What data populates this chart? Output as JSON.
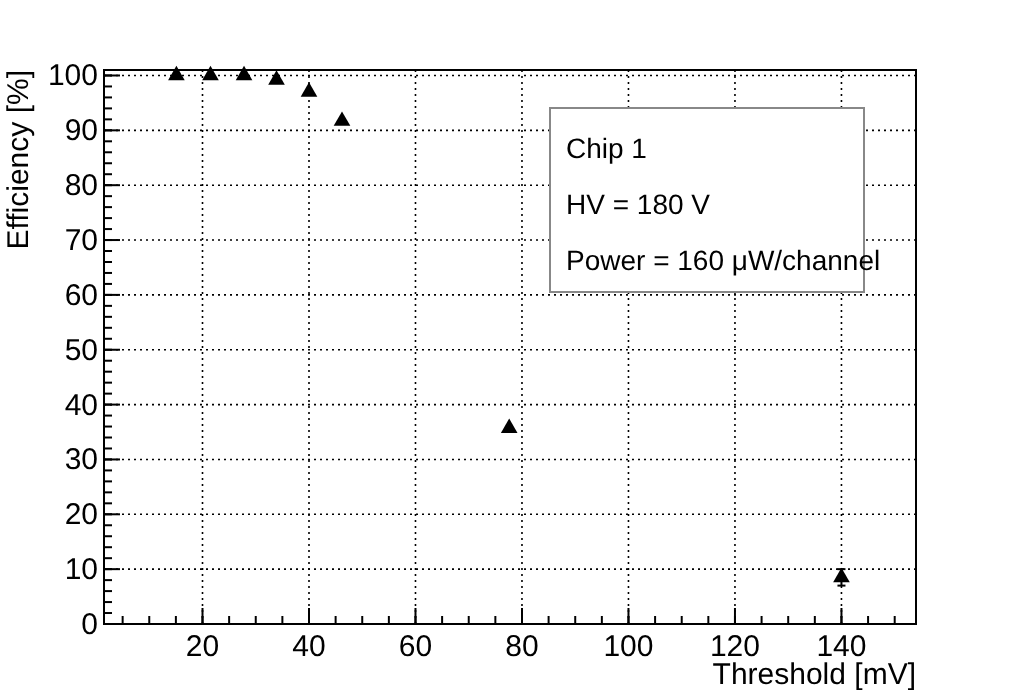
{
  "chart_data": {
    "type": "scatter",
    "xlabel": "Threshold [mV]",
    "ylabel": "Efficiency [%]",
    "x": [
      15.1,
      21.5,
      27.8,
      33.9,
      40,
      46.2,
      77.6,
      140
    ],
    "values": [
      100,
      100,
      100,
      99.2,
      97,
      91.7,
      35.7,
      8.5
    ],
    "errors": [
      null,
      null,
      null,
      null,
      null,
      null,
      null,
      1.5
    ],
    "color": "#000000",
    "marker": "triangle",
    "grid": true,
    "xlim": [
      1.5,
      154
    ],
    "xticks": [
      20,
      40,
      60,
      80,
      100,
      120,
      140
    ],
    "ylim": [
      0,
      101
    ],
    "yticks": [
      0,
      10,
      20,
      30,
      40,
      50,
      60,
      70,
      80,
      90,
      100
    ],
    "annotations": [
      "Chip 1",
      "HV = 180 V",
      "Power = 160 μW/channel"
    ]
  }
}
